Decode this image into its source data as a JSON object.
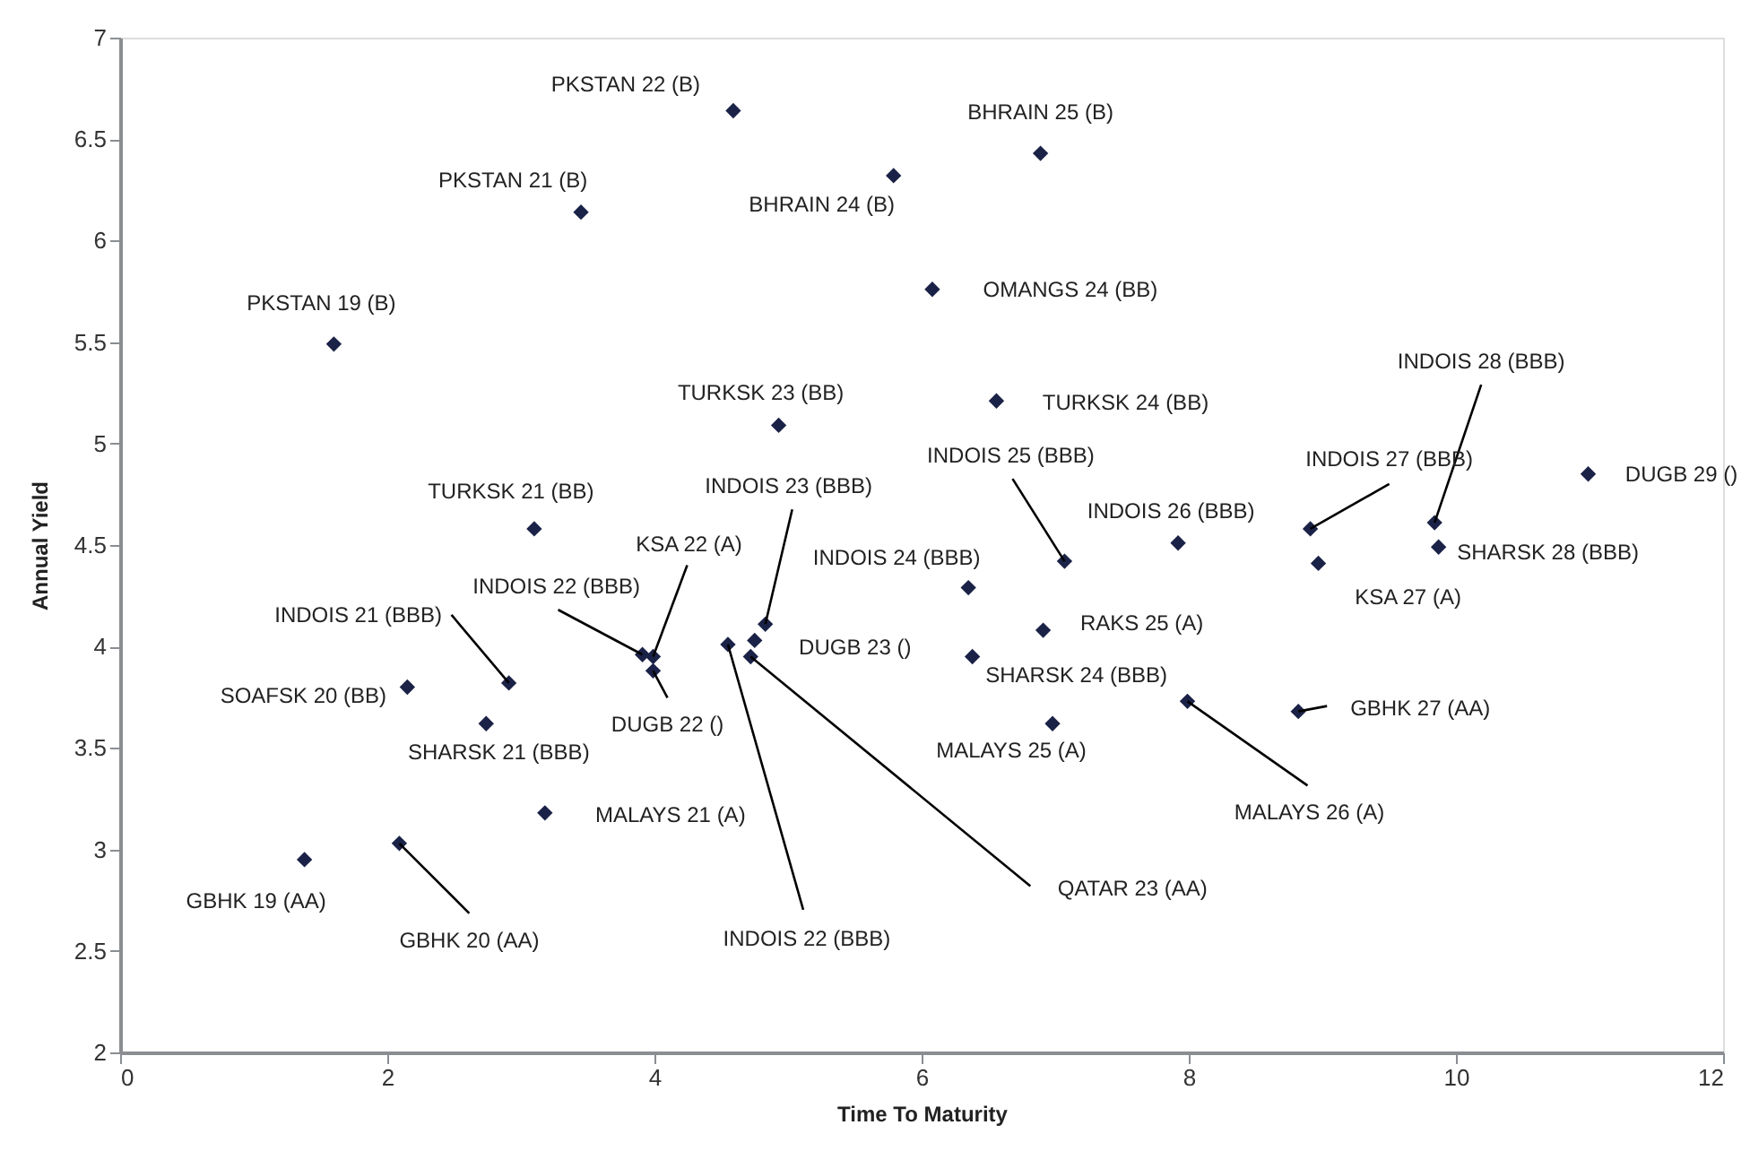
{
  "chart_data": {
    "type": "scatter",
    "xlabel": "Time To Maturity",
    "ylabel": "Annual Yield",
    "xlim": [
      0,
      12
    ],
    "xticks": [
      0,
      2,
      4,
      6,
      8,
      10,
      12
    ],
    "ylim": [
      2,
      7
    ],
    "yticks": [
      2,
      2.5,
      3,
      3.5,
      4,
      4.5,
      5,
      5.5,
      6,
      6.5,
      7
    ],
    "grid": false,
    "marker": "diamond",
    "series": [
      {
        "color": "#1b2247",
        "x": [
          4.59,
          3.45,
          1.6,
          5.79,
          6.89,
          6.08,
          4.93,
          6.56,
          3.1,
          10.99,
          9.84,
          8.91,
          7.92,
          7.07,
          9.87,
          8.97,
          6.35,
          6.91,
          6.38,
          6.98,
          7.99,
          8.82,
          4.72,
          4.55,
          4.75,
          4.83,
          3.99,
          3.91,
          3.99,
          2.91,
          2.15,
          2.74,
          3.18,
          1.38,
          2.09
        ],
        "values": [
          6.64,
          6.14,
          5.49,
          6.32,
          6.43,
          5.76,
          5.09,
          5.21,
          4.58,
          4.85,
          4.61,
          4.58,
          4.51,
          4.42,
          4.49,
          4.41,
          4.29,
          4.08,
          3.95,
          3.62,
          3.73,
          3.68,
          3.95,
          4.01,
          4.03,
          4.11,
          3.95,
          3.96,
          3.88,
          3.82,
          3.8,
          3.62,
          3.18,
          2.95,
          3.03
        ]
      }
    ],
    "annotations": [
      {
        "text": "PKSTAN 22 (B)",
        "x": 4.59,
        "y": 6.64
      },
      {
        "text": "PKSTAN 21 (B)",
        "x": 3.45,
        "y": 6.14
      },
      {
        "text": "PKSTAN 19 (B)",
        "x": 1.6,
        "y": 5.49
      },
      {
        "text": "BHRAIN 24 (B)",
        "x": 5.79,
        "y": 6.32
      },
      {
        "text": "BHRAIN 25 (B)",
        "x": 6.89,
        "y": 6.43
      },
      {
        "text": "OMANGS 24 (BB)",
        "x": 6.08,
        "y": 5.76
      },
      {
        "text": "TURKSK 23 (BB)",
        "x": 4.93,
        "y": 5.09
      },
      {
        "text": "TURKSK 24 (BB)",
        "x": 6.56,
        "y": 5.21
      },
      {
        "text": "TURKSK 21 (BB)",
        "x": 3.1,
        "y": 4.58
      },
      {
        "text": "DUGB 29 ()",
        "x": 10.99,
        "y": 4.85
      },
      {
        "text": "INDOIS 28 (BBB)",
        "x": 9.84,
        "y": 4.61
      },
      {
        "text": "INDOIS 27 (BBB)",
        "x": 8.91,
        "y": 4.58
      },
      {
        "text": "INDOIS 26 (BBB)",
        "x": 7.92,
        "y": 4.51
      },
      {
        "text": "INDOIS 25 (BBB)",
        "x": 7.07,
        "y": 4.42
      },
      {
        "text": "SHARSK 28 (BBB)",
        "x": 9.87,
        "y": 4.49
      },
      {
        "text": "KSA 27 (A)",
        "x": 8.97,
        "y": 4.41
      },
      {
        "text": "INDOIS 24 (BBB)",
        "x": 6.35,
        "y": 4.29
      },
      {
        "text": "RAKS 25 (A)",
        "x": 6.91,
        "y": 4.08
      },
      {
        "text": "SHARSK 24 (BBB)",
        "x": 6.38,
        "y": 3.95
      },
      {
        "text": "MALAYS 25 (A)",
        "x": 6.98,
        "y": 3.62
      },
      {
        "text": "MALAYS 26 (A)",
        "x": 7.99,
        "y": 3.73
      },
      {
        "text": "GBHK 27 (AA)",
        "x": 8.82,
        "y": 3.68
      },
      {
        "text": "QATAR 23 (AA)",
        "x": 4.72,
        "y": 3.95
      },
      {
        "text": "INDOIS 22 (BBB)",
        "x": 4.55,
        "y": 4.01
      },
      {
        "text": "DUGB 23 ()",
        "x": 4.75,
        "y": 4.03
      },
      {
        "text": "INDOIS 23 (BBB)",
        "x": 4.83,
        "y": 4.11
      },
      {
        "text": "KSA 22 (A)",
        "x": 3.99,
        "y": 3.95
      },
      {
        "text": "INDOIS 22 (BBB)",
        "x": 3.91,
        "y": 3.96
      },
      {
        "text": "DUGB 22 ()",
        "x": 3.99,
        "y": 3.88
      },
      {
        "text": "INDOIS 21 (BBB)",
        "x": 2.91,
        "y": 3.82
      },
      {
        "text": "SOAFSK 20 (BB)",
        "x": 2.15,
        "y": 3.8
      },
      {
        "text": "SHARSK 21 (BBB)",
        "x": 2.74,
        "y": 3.62
      },
      {
        "text": "MALAYS 21 (A)",
        "x": 3.18,
        "y": 3.18
      },
      {
        "text": "GBHK 19 (AA)",
        "x": 1.38,
        "y": 2.95
      },
      {
        "text": "GBHK 20 (AA)",
        "x": 2.09,
        "y": 3.03
      }
    ]
  }
}
